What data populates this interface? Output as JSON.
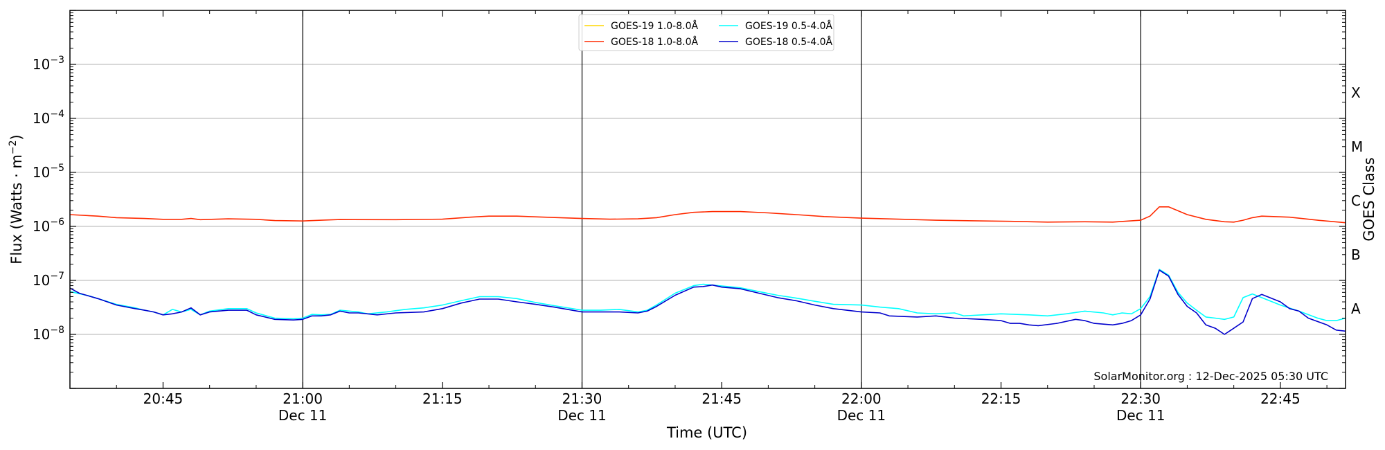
{
  "chart_data": {
    "type": "line",
    "title": "",
    "xlabel": "Time (UTC)",
    "ylabel_base": "Flux (Watts · m",
    "ylabel_sup": "−2",
    "ylabel_close": ")",
    "y2label": "GOES Class",
    "yscale": "log",
    "ylim": [
      1e-09,
      0.01
    ],
    "xlim": [
      "20:35",
      "22:52"
    ],
    "grid": "horizontal",
    "legend_placement": "top-center",
    "x_ticks": [
      {
        "time": "20:45",
        "label": "20:45",
        "date": ""
      },
      {
        "time": "21:00",
        "label": "21:00",
        "date": "Dec 11"
      },
      {
        "time": "21:15",
        "label": "21:15",
        "date": ""
      },
      {
        "time": "21:30",
        "label": "21:30",
        "date": "Dec 11"
      },
      {
        "time": "21:45",
        "label": "21:45",
        "date": ""
      },
      {
        "time": "22:00",
        "label": "22:00",
        "date": "Dec 11"
      },
      {
        "time": "22:15",
        "label": "22:15",
        "date": ""
      },
      {
        "time": "22:30",
        "label": "22:30",
        "date": "Dec 11"
      },
      {
        "time": "22:45",
        "label": "22:45",
        "date": ""
      }
    ],
    "vlines": [
      "21:00",
      "21:30",
      "22:00",
      "22:30"
    ],
    "y_ticks": [
      {
        "value": 1e-08,
        "base": "10",
        "exp": "−8"
      },
      {
        "value": 1e-07,
        "base": "10",
        "exp": "−7"
      },
      {
        "value": 1e-06,
        "base": "10",
        "exp": "−6"
      },
      {
        "value": 1e-05,
        "base": "10",
        "exp": "−5"
      },
      {
        "value": 0.0001,
        "base": "10",
        "exp": "−4"
      },
      {
        "value": 0.001,
        "base": "10",
        "exp": "−3"
      }
    ],
    "class_labels": [
      {
        "label": "A",
        "value": 3e-08
      },
      {
        "label": "B",
        "value": 3e-07
      },
      {
        "label": "C",
        "value": 3e-06
      },
      {
        "label": "M",
        "value": 3e-05
      },
      {
        "label": "X",
        "value": 0.0003
      }
    ],
    "legend": [
      {
        "name": "GOES-19 1.0-8.0Å",
        "color": "#ffd700"
      },
      {
        "name": "GOES-19 0.5-4.0Å",
        "color": "#00ffff"
      },
      {
        "name": "GOES-18 1.0-8.0Å",
        "color": "#ff2a00"
      },
      {
        "name": "GOES-18 0.5-4.0Å",
        "color": "#0000cc"
      }
    ],
    "series": [
      {
        "name": "GOES-19 1.0-8.0Å",
        "color": "#ffd700",
        "points": []
      },
      {
        "name": "GOES-18 1.0-8.0Å",
        "color": "#ff2a00",
        "points": [
          [
            "20:35",
            1.65e-06
          ],
          [
            "20:38",
            1.55e-06
          ],
          [
            "20:40",
            1.45e-06
          ],
          [
            "20:43",
            1.4e-06
          ],
          [
            "20:45",
            1.35e-06
          ],
          [
            "20:47",
            1.35e-06
          ],
          [
            "20:48",
            1.4e-06
          ],
          [
            "20:49",
            1.33e-06
          ],
          [
            "20:52",
            1.38e-06
          ],
          [
            "20:55",
            1.35e-06
          ],
          [
            "20:57",
            1.28e-06
          ],
          [
            "21:00",
            1.26e-06
          ],
          [
            "21:02",
            1.3e-06
          ],
          [
            "21:04",
            1.34e-06
          ],
          [
            "21:10",
            1.33e-06
          ],
          [
            "21:15",
            1.36e-06
          ],
          [
            "21:18",
            1.48e-06
          ],
          [
            "21:20",
            1.55e-06
          ],
          [
            "21:23",
            1.55e-06
          ],
          [
            "21:26",
            1.48e-06
          ],
          [
            "21:30",
            1.4e-06
          ],
          [
            "21:33",
            1.36e-06
          ],
          [
            "21:36",
            1.38e-06
          ],
          [
            "21:38",
            1.45e-06
          ],
          [
            "21:40",
            1.65e-06
          ],
          [
            "21:42",
            1.82e-06
          ],
          [
            "21:44",
            1.88e-06
          ],
          [
            "21:47",
            1.88e-06
          ],
          [
            "21:50",
            1.78e-06
          ],
          [
            "21:53",
            1.65e-06
          ],
          [
            "21:56",
            1.52e-06
          ],
          [
            "22:00",
            1.42e-06
          ],
          [
            "22:04",
            1.36e-06
          ],
          [
            "22:08",
            1.3e-06
          ],
          [
            "22:12",
            1.27e-06
          ],
          [
            "22:16",
            1.24e-06
          ],
          [
            "22:20",
            1.2e-06
          ],
          [
            "22:24",
            1.22e-06
          ],
          [
            "22:27",
            1.2e-06
          ],
          [
            "22:30",
            1.3e-06
          ],
          [
            "22:31",
            1.55e-06
          ],
          [
            "22:32",
            2.3e-06
          ],
          [
            "22:33",
            2.3e-06
          ],
          [
            "22:35",
            1.65e-06
          ],
          [
            "22:37",
            1.35e-06
          ],
          [
            "22:39",
            1.22e-06
          ],
          [
            "22:40",
            1.2e-06
          ],
          [
            "22:41",
            1.3e-06
          ],
          [
            "22:42",
            1.45e-06
          ],
          [
            "22:43",
            1.55e-06
          ],
          [
            "22:46",
            1.48e-06
          ],
          [
            "22:49",
            1.3e-06
          ],
          [
            "22:52",
            1.17e-06
          ]
        ]
      },
      {
        "name": "GOES-19 0.5-4.0Å",
        "color": "#00ffff",
        "points": [
          [
            "20:35",
            6.2e-08
          ],
          [
            "20:37",
            5.2e-08
          ],
          [
            "20:38",
            4.6e-08
          ],
          [
            "20:40",
            3.6e-08
          ],
          [
            "20:42",
            3.1e-08
          ],
          [
            "20:43",
            2.8e-08
          ],
          [
            "20:44",
            2.6e-08
          ],
          [
            "20:45",
            2.3e-08
          ],
          [
            "20:46",
            2.9e-08
          ],
          [
            "20:47",
            2.6e-08
          ],
          [
            "20:48",
            2.9e-08
          ],
          [
            "20:49",
            2.3e-08
          ],
          [
            "20:50",
            2.7e-08
          ],
          [
            "20:52",
            3e-08
          ],
          [
            "20:54",
            3e-08
          ],
          [
            "20:55",
            2.5e-08
          ],
          [
            "20:57",
            2e-08
          ],
          [
            "20:59",
            1.95e-08
          ],
          [
            "21:00",
            2e-08
          ],
          [
            "21:01",
            2.35e-08
          ],
          [
            "21:02",
            2.3e-08
          ],
          [
            "21:03",
            2.35e-08
          ],
          [
            "21:04",
            2.8e-08
          ],
          [
            "21:06",
            2.6e-08
          ],
          [
            "21:07",
            2.4e-08
          ],
          [
            "21:09",
            2.6e-08
          ],
          [
            "21:11",
            2.9e-08
          ],
          [
            "21:13",
            3.1e-08
          ],
          [
            "21:15",
            3.5e-08
          ],
          [
            "21:17",
            4.2e-08
          ],
          [
            "21:19",
            5e-08
          ],
          [
            "21:21",
            5e-08
          ],
          [
            "21:23",
            4.6e-08
          ],
          [
            "21:25",
            3.9e-08
          ],
          [
            "21:27",
            3.4e-08
          ],
          [
            "21:30",
            2.8e-08
          ],
          [
            "21:32",
            2.8e-08
          ],
          [
            "21:34",
            2.9e-08
          ],
          [
            "21:36",
            2.6e-08
          ],
          [
            "21:37",
            2.8e-08
          ],
          [
            "21:38",
            3.5e-08
          ],
          [
            "21:40",
            5.8e-08
          ],
          [
            "21:42",
            8e-08
          ],
          [
            "21:43",
            8.5e-08
          ],
          [
            "21:45",
            7.9e-08
          ],
          [
            "21:47",
            7.3e-08
          ],
          [
            "21:49",
            6.2e-08
          ],
          [
            "21:51",
            5.3e-08
          ],
          [
            "21:53",
            4.7e-08
          ],
          [
            "21:55",
            4.1e-08
          ],
          [
            "21:57",
            3.6e-08
          ],
          [
            "22:00",
            3.5e-08
          ],
          [
            "22:02",
            3.2e-08
          ],
          [
            "22:04",
            3e-08
          ],
          [
            "22:06",
            2.5e-08
          ],
          [
            "22:08",
            2.4e-08
          ],
          [
            "22:10",
            2.5e-08
          ],
          [
            "22:11",
            2.2e-08
          ],
          [
            "22:13",
            2.3e-08
          ],
          [
            "22:15",
            2.4e-08
          ],
          [
            "22:18",
            2.3e-08
          ],
          [
            "22:20",
            2.2e-08
          ],
          [
            "22:22",
            2.4e-08
          ],
          [
            "22:24",
            2.7e-08
          ],
          [
            "22:26",
            2.5e-08
          ],
          [
            "22:27",
            2.3e-08
          ],
          [
            "22:28",
            2.5e-08
          ],
          [
            "22:29",
            2.4e-08
          ],
          [
            "22:30",
            3e-08
          ],
          [
            "22:31",
            5e-08
          ],
          [
            "22:32",
            1.6e-07
          ],
          [
            "22:33",
            1.25e-07
          ],
          [
            "22:34",
            6e-08
          ],
          [
            "22:35",
            3.8e-08
          ],
          [
            "22:36",
            2.8e-08
          ],
          [
            "22:37",
            2.1e-08
          ],
          [
            "22:38",
            2e-08
          ],
          [
            "22:39",
            1.9e-08
          ],
          [
            "22:40",
            2.1e-08
          ],
          [
            "22:41",
            4.8e-08
          ],
          [
            "22:42",
            5.6e-08
          ],
          [
            "22:43",
            4.8e-08
          ],
          [
            "22:45",
            3.5e-08
          ],
          [
            "22:47",
            2.7e-08
          ],
          [
            "22:49",
            2e-08
          ],
          [
            "22:50",
            1.8e-08
          ],
          [
            "22:51",
            1.8e-08
          ],
          [
            "22:52",
            2e-08
          ]
        ]
      },
      {
        "name": "GOES-18 0.5-4.0Å",
        "color": "#0000cc",
        "points": [
          [
            "20:35",
            7.2e-08
          ],
          [
            "20:36",
            5.8e-08
          ],
          [
            "20:38",
            4.6e-08
          ],
          [
            "20:40",
            3.5e-08
          ],
          [
            "20:42",
            3e-08
          ],
          [
            "20:43",
            2.8e-08
          ],
          [
            "20:44",
            2.6e-08
          ],
          [
            "20:45",
            2.3e-08
          ],
          [
            "20:46",
            2.4e-08
          ],
          [
            "20:47",
            2.6e-08
          ],
          [
            "20:48",
            3.1e-08
          ],
          [
            "20:49",
            2.3e-08
          ],
          [
            "20:50",
            2.6e-08
          ],
          [
            "20:52",
            2.8e-08
          ],
          [
            "20:54",
            2.8e-08
          ],
          [
            "20:55",
            2.3e-08
          ],
          [
            "20:57",
            1.9e-08
          ],
          [
            "20:59",
            1.85e-08
          ],
          [
            "21:00",
            1.9e-08
          ],
          [
            "21:01",
            2.2e-08
          ],
          [
            "21:02",
            2.2e-08
          ],
          [
            "21:03",
            2.3e-08
          ],
          [
            "21:04",
            2.7e-08
          ],
          [
            "21:05",
            2.5e-08
          ],
          [
            "21:06",
            2.5e-08
          ],
          [
            "21:08",
            2.3e-08
          ],
          [
            "21:10",
            2.5e-08
          ],
          [
            "21:13",
            2.6e-08
          ],
          [
            "21:15",
            3e-08
          ],
          [
            "21:17",
            3.8e-08
          ],
          [
            "21:19",
            4.5e-08
          ],
          [
            "21:21",
            4.5e-08
          ],
          [
            "21:23",
            4e-08
          ],
          [
            "21:25",
            3.6e-08
          ],
          [
            "21:27",
            3.2e-08
          ],
          [
            "21:30",
            2.6e-08
          ],
          [
            "21:32",
            2.6e-08
          ],
          [
            "21:34",
            2.6e-08
          ],
          [
            "21:36",
            2.5e-08
          ],
          [
            "21:37",
            2.7e-08
          ],
          [
            "21:38",
            3.3e-08
          ],
          [
            "21:40",
            5.3e-08
          ],
          [
            "21:42",
            7.5e-08
          ],
          [
            "21:43",
            7.7e-08
          ],
          [
            "21:44",
            8.2e-08
          ],
          [
            "21:45",
            7.5e-08
          ],
          [
            "21:47",
            7e-08
          ],
          [
            "21:49",
            5.8e-08
          ],
          [
            "21:51",
            4.8e-08
          ],
          [
            "21:53",
            4.2e-08
          ],
          [
            "21:55",
            3.5e-08
          ],
          [
            "21:57",
            3e-08
          ],
          [
            "22:00",
            2.6e-08
          ],
          [
            "22:02",
            2.5e-08
          ],
          [
            "22:03",
            2.2e-08
          ],
          [
            "22:06",
            2.1e-08
          ],
          [
            "22:08",
            2.2e-08
          ],
          [
            "22:10",
            2e-08
          ],
          [
            "22:13",
            1.9e-08
          ],
          [
            "22:15",
            1.8e-08
          ],
          [
            "22:16",
            1.6e-08
          ],
          [
            "22:17",
            1.6e-08
          ],
          [
            "22:18",
            1.5e-08
          ],
          [
            "22:19",
            1.45e-08
          ],
          [
            "22:21",
            1.6e-08
          ],
          [
            "22:23",
            1.9e-08
          ],
          [
            "22:24",
            1.8e-08
          ],
          [
            "22:25",
            1.6e-08
          ],
          [
            "22:27",
            1.5e-08
          ],
          [
            "22:28",
            1.6e-08
          ],
          [
            "22:29",
            1.8e-08
          ],
          [
            "22:30",
            2.3e-08
          ],
          [
            "22:31",
            4.5e-08
          ],
          [
            "22:32",
            1.55e-07
          ],
          [
            "22:33",
            1.2e-07
          ],
          [
            "22:34",
            5.5e-08
          ],
          [
            "22:35",
            3.3e-08
          ],
          [
            "22:36",
            2.5e-08
          ],
          [
            "22:37",
            1.5e-08
          ],
          [
            "22:38",
            1.3e-08
          ],
          [
            "22:39",
            1e-08
          ],
          [
            "22:40",
            1.3e-08
          ],
          [
            "22:41",
            1.7e-08
          ],
          [
            "22:42",
            4.6e-08
          ],
          [
            "22:43",
            5.5e-08
          ],
          [
            "22:45",
            4e-08
          ],
          [
            "22:46",
            3e-08
          ],
          [
            "22:47",
            2.7e-08
          ],
          [
            "22:48",
            2e-08
          ],
          [
            "22:50",
            1.5e-08
          ],
          [
            "22:51",
            1.2e-08
          ],
          [
            "22:52",
            1.15e-08
          ]
        ]
      }
    ],
    "credit": "SolarMonitor.org : 12-Dec-2025 05:30 UTC"
  }
}
